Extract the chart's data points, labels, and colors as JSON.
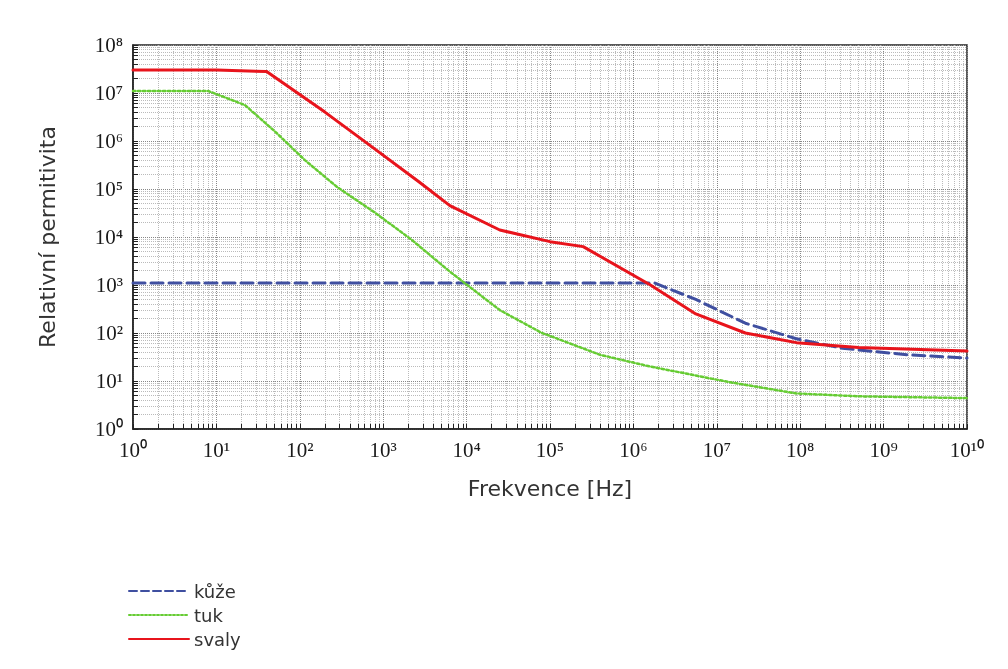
{
  "chart_data": {
    "type": "line",
    "xlabel": "Frekvence [Hz]",
    "ylabel": "Relativní permitivita",
    "log": "xy",
    "grid": true,
    "legend": "bottom left",
    "marker": "none",
    "xlim": [
      1,
      10000000000
    ],
    "ylim": [
      1,
      100000000
    ],
    "xticks": [
      {
        "value": 1,
        "label": "10⁰"
      },
      {
        "value": 10,
        "label": "10¹"
      },
      {
        "value": 100,
        "label": "10²"
      },
      {
        "value": 1000,
        "label": "10³"
      },
      {
        "value": 10000,
        "label": "10⁴"
      },
      {
        "value": 100000,
        "label": "10⁵"
      },
      {
        "value": 1000000,
        "label": "10⁶"
      },
      {
        "value": 10000000,
        "label": "10⁷"
      },
      {
        "value": 100000000,
        "label": "10⁸"
      },
      {
        "value": 1000000000,
        "label": "10⁹"
      },
      {
        "value": 10000000000,
        "label": "10¹⁰"
      }
    ],
    "yticks": [
      {
        "value": 1,
        "label": "10⁰"
      },
      {
        "value": 10,
        "label": "10¹"
      },
      {
        "value": 100,
        "label": "10²"
      },
      {
        "value": 1000,
        "label": "10³"
      },
      {
        "value": 10000,
        "label": "10⁴"
      },
      {
        "value": 100000,
        "label": "10⁵"
      },
      {
        "value": 1000000,
        "label": "10⁶"
      },
      {
        "value": 10000000,
        "label": "10⁷"
      },
      {
        "value": 100000000,
        "label": "10⁸"
      }
    ],
    "series": [
      {
        "name": "kůže",
        "color": "#3f4fa0",
        "line_style": "dashed",
        "x": [
          1,
          1000000,
          1800000,
          5600000,
          22000000,
          90000000,
          320000000,
          2000000000,
          10000000000
        ],
        "values": [
          1100,
          1100,
          1100,
          500,
          160,
          76,
          48,
          35,
          30
        ]
      },
      {
        "name": "tuk",
        "color": "#66cc33",
        "line_style": "dotted",
        "x": [
          1,
          8,
          22,
          50,
          115,
          280,
          800,
          2200,
          6300,
          25000,
          80000,
          100000,
          400000,
          1600000,
          14000000,
          90000000,
          500000000,
          10000000000
        ],
        "values": [
          11000000,
          11000000,
          5600000,
          1600000,
          400000,
          110000,
          32000,
          8700,
          1900,
          300,
          100,
          87,
          35,
          20,
          9.5,
          5.5,
          4.8,
          4.4
        ]
      },
      {
        "name": "svaly",
        "color": "#e8141c",
        "line_style": "solid",
        "x": [
          1,
          10,
          40,
          200,
          700,
          2700,
          6300,
          25000,
          100000,
          250000,
          1600000,
          5600000,
          22000000,
          90000000,
          500000000,
          10000000000
        ],
        "values": [
          30000000,
          30000000,
          28000000,
          4000000,
          800000,
          140000,
          45000,
          14000,
          8000,
          6300,
          1000,
          250,
          100,
          63,
          50,
          42
        ]
      }
    ]
  }
}
